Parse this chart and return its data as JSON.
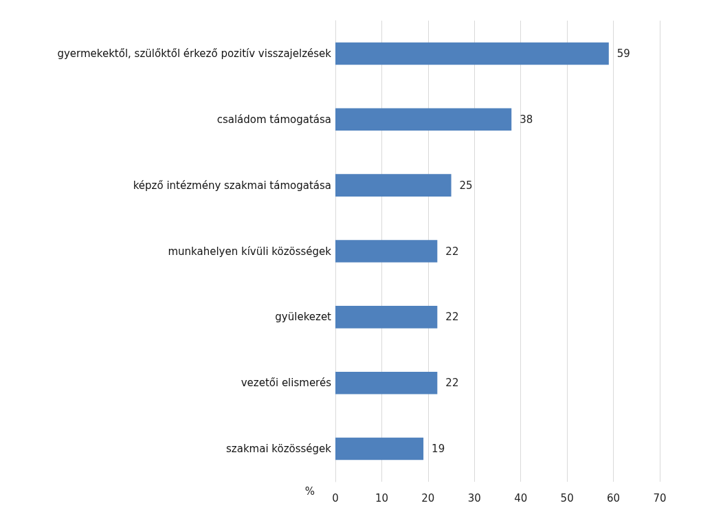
{
  "chart_data": {
    "type": "bar",
    "orientation": "horizontal",
    "xlabel": "%",
    "categories": [
      "gyermekektől, szülőktől érkező pozitív visszajelzések",
      "családom támogatása",
      "képző intézmény szakmai támogatása",
      "munkahelyen kívüli közösségek",
      "gyülekezet",
      "vezetői elismerés",
      "szakmai közösségek"
    ],
    "values": [
      59,
      38,
      25,
      22,
      22,
      22,
      19
    ],
    "color": "#4f81bd",
    "xlim": [
      0,
      70
    ],
    "xticks": [
      0,
      10,
      20,
      30,
      40,
      50,
      60,
      70
    ],
    "grid": "x",
    "data_labels": true
  }
}
